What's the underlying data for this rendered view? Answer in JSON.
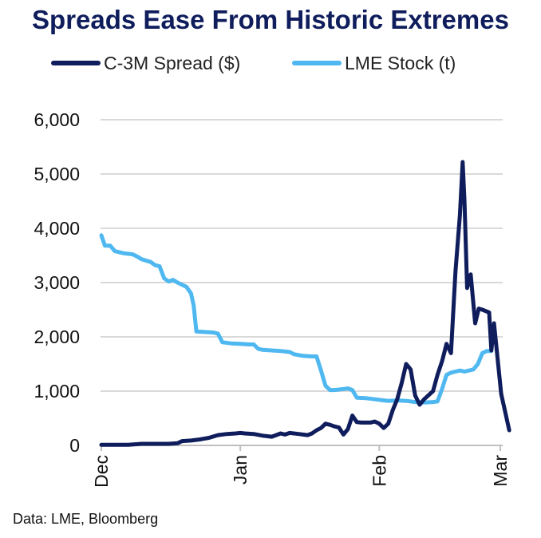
{
  "chart_data": {
    "type": "line",
    "title": "Spreads Ease From Historic Extremes",
    "source": "Data: LME, Bloomberg",
    "y_ticks": [
      "6,000",
      "5,000",
      "4,000",
      "3,000",
      "2,000",
      "1,000",
      "0"
    ],
    "ylim": [
      0,
      6000
    ],
    "x_ticks": [
      "Dec",
      "Jan",
      "Feb",
      "Mar"
    ],
    "xlim": [
      0,
      89
    ],
    "x_tick_positions": [
      0,
      31,
      62,
      89
    ],
    "grid": "horizontal",
    "legend_position": "top",
    "series": [
      {
        "name": "C-3M Spread ($)",
        "color": "#0f1d5c",
        "points": [
          [
            0,
            10
          ],
          [
            3,
            10
          ],
          [
            6,
            10
          ],
          [
            9,
            30
          ],
          [
            12,
            30
          ],
          [
            15,
            30
          ],
          [
            17,
            40
          ],
          [
            18,
            80
          ],
          [
            20,
            90
          ],
          [
            22,
            110
          ],
          [
            24,
            140
          ],
          [
            26,
            190
          ],
          [
            28,
            210
          ],
          [
            30,
            220
          ],
          [
            31,
            230
          ],
          [
            32,
            220
          ],
          [
            34,
            210
          ],
          [
            36,
            180
          ],
          [
            38,
            160
          ],
          [
            39,
            190
          ],
          [
            40,
            220
          ],
          [
            41,
            200
          ],
          [
            42,
            230
          ],
          [
            44,
            210
          ],
          [
            46,
            190
          ],
          [
            47,
            220
          ],
          [
            48,
            280
          ],
          [
            49,
            320
          ],
          [
            50,
            400
          ],
          [
            51,
            380
          ],
          [
            52,
            350
          ],
          [
            53,
            330
          ],
          [
            54,
            200
          ],
          [
            55,
            300
          ],
          [
            56,
            550
          ],
          [
            57,
            430
          ],
          [
            58,
            420
          ],
          [
            60,
            420
          ],
          [
            61,
            440
          ],
          [
            62,
            400
          ],
          [
            63,
            320
          ],
          [
            64,
            400
          ],
          [
            65,
            650
          ],
          [
            66,
            850
          ],
          [
            67,
            1150
          ],
          [
            68,
            1500
          ],
          [
            69,
            1400
          ],
          [
            70,
            920
          ],
          [
            71,
            750
          ],
          [
            72,
            850
          ],
          [
            74,
            1000
          ],
          [
            75,
            1300
          ],
          [
            76,
            1550
          ],
          [
            77,
            1870
          ],
          [
            78,
            1700
          ],
          [
            79,
            3200
          ],
          [
            80,
            4250
          ],
          [
            80.6,
            5220
          ],
          [
            81,
            4500
          ],
          [
            81.6,
            2900
          ],
          [
            82.4,
            3150
          ],
          [
            83.4,
            2250
          ],
          [
            84.2,
            2520
          ],
          [
            85,
            2500
          ],
          [
            86.5,
            2450
          ],
          [
            87,
            1750
          ],
          [
            87.6,
            2250
          ],
          [
            88.4,
            1600
          ],
          [
            89.2,
            950
          ],
          [
            91,
            280
          ]
        ]
      },
      {
        "name": "LME Stock (t)",
        "color": "#4fb8f0",
        "points": [
          [
            0,
            3870
          ],
          [
            0.8,
            3680
          ],
          [
            2,
            3680
          ],
          [
            3,
            3580
          ],
          [
            5,
            3540
          ],
          [
            7,
            3520
          ],
          [
            8,
            3480
          ],
          [
            9,
            3430
          ],
          [
            11,
            3380
          ],
          [
            12,
            3320
          ],
          [
            13,
            3300
          ],
          [
            14,
            3080
          ],
          [
            15,
            3020
          ],
          [
            16,
            3050
          ],
          [
            17,
            3000
          ],
          [
            19,
            2920
          ],
          [
            20,
            2800
          ],
          [
            20.6,
            2580
          ],
          [
            21.2,
            2100
          ],
          [
            23,
            2090
          ],
          [
            25,
            2080
          ],
          [
            26,
            2060
          ],
          [
            27,
            1900
          ],
          [
            29,
            1880
          ],
          [
            31,
            1870
          ],
          [
            33,
            1860
          ],
          [
            34,
            1860
          ],
          [
            35,
            1780
          ],
          [
            36,
            1760
          ],
          [
            38,
            1750
          ],
          [
            40,
            1740
          ],
          [
            42,
            1720
          ],
          [
            43,
            1680
          ],
          [
            45,
            1650
          ],
          [
            47,
            1640
          ],
          [
            48,
            1640
          ],
          [
            49,
            1380
          ],
          [
            50,
            1100
          ],
          [
            51,
            1020
          ],
          [
            52,
            1020
          ],
          [
            54,
            1040
          ],
          [
            55,
            1050
          ],
          [
            56,
            1020
          ],
          [
            57,
            880
          ],
          [
            59,
            870
          ],
          [
            61,
            850
          ],
          [
            63,
            830
          ],
          [
            64,
            820
          ],
          [
            66,
            830
          ],
          [
            68,
            820
          ],
          [
            70,
            800
          ],
          [
            72,
            790
          ],
          [
            74,
            800
          ],
          [
            75,
            810
          ],
          [
            76,
            1040
          ],
          [
            77,
            1300
          ],
          [
            78,
            1340
          ],
          [
            79,
            1360
          ],
          [
            80,
            1380
          ],
          [
            81,
            1360
          ],
          [
            82,
            1380
          ],
          [
            83,
            1400
          ],
          [
            84,
            1500
          ],
          [
            85,
            1700
          ],
          [
            86,
            1740
          ],
          [
            87,
            1740
          ]
        ]
      }
    ]
  }
}
